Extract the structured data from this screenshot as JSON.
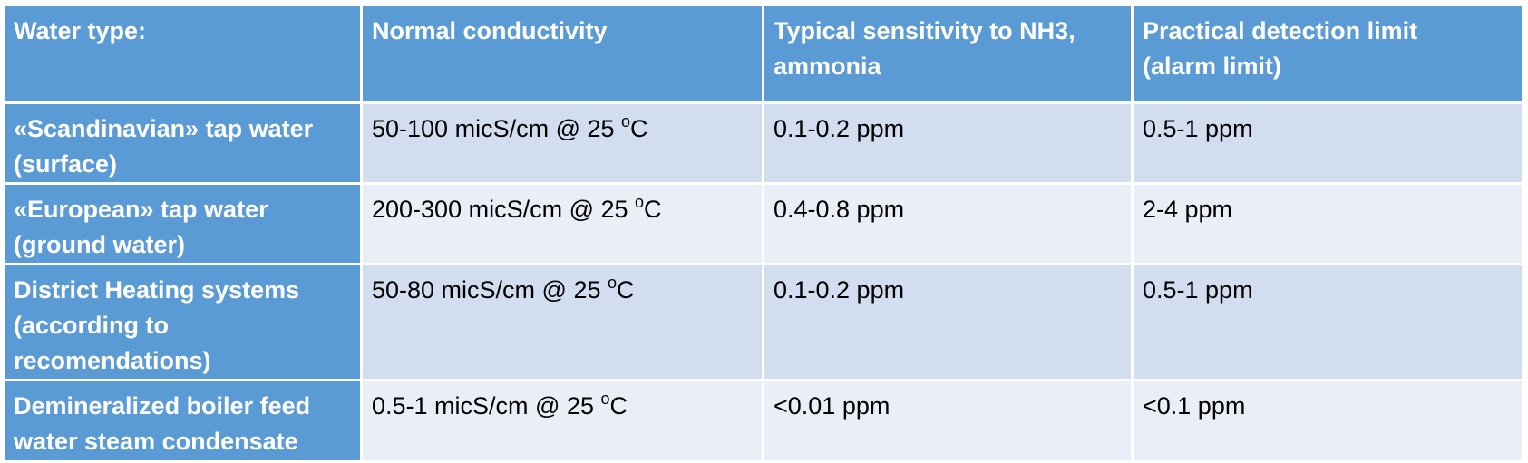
{
  "table": {
    "headers": [
      "Water type:",
      "Normal conductivity",
      "Typical sensitivity to NH3,\nammonia",
      "Practical detection limit\n(alarm limit)"
    ],
    "rows": [
      {
        "water_type": "«Scandinavian» tap water\n(surface)",
        "conductivity": "50-100 micS/cm @ 25 ",
        "conductivity_sup": "o",
        "conductivity_unit": "C",
        "sensitivity": "0.1-0.2 ppm",
        "detection_limit": "0.5-1 ppm"
      },
      {
        "water_type": "«European» tap water\n(ground water)",
        "conductivity": "200-300 micS/cm @ 25 ",
        "conductivity_sup": "o",
        "conductivity_unit": "C",
        "sensitivity": "0.4-0.8 ppm",
        "detection_limit": "2-4 ppm"
      },
      {
        "water_type": "District Heating systems\n(according to\nrecomendations)",
        "conductivity": "50-80 micS/cm @ 25 ",
        "conductivity_sup": "o",
        "conductivity_unit": "C",
        "sensitivity": "0.1-0.2 ppm",
        "detection_limit": "0.5-1 ppm"
      },
      {
        "water_type": "Demineralized boiler feed\nwater steam condensate",
        "conductivity": "0.5-1 micS/cm @ 25 ",
        "conductivity_sup": "o",
        "conductivity_unit": "C",
        "sensitivity": "<0.01 ppm",
        "detection_limit": "<0.1 ppm"
      }
    ]
  },
  "colors": {
    "header_bg": "#5b9bd5",
    "row_odd_bg": "#d2deef",
    "row_even_bg": "#eaeff7",
    "border": "#ffffff"
  }
}
